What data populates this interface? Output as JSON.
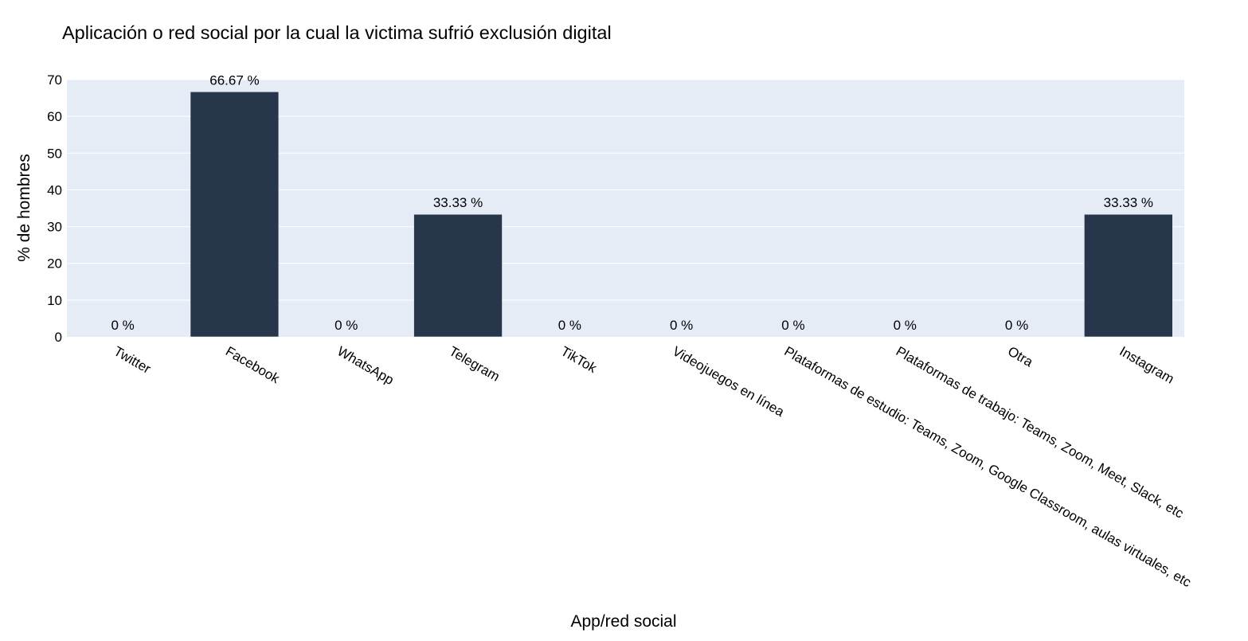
{
  "chart_data": {
    "type": "bar",
    "title": "Aplicación o red social por la cual la victima sufrió exclusión digital",
    "xlabel": "App/red social",
    "ylabel": "% de hombres",
    "categories": [
      "Twitter",
      "Facebook",
      "WhatsApp",
      "Telegram",
      "TikTok",
      "Videojuegos en línea",
      "Plataformas de estudio: Teams, Zoom, Google Classroom, aulas virtuales, etc",
      "Plataformas de trabajo: Teams, Zoom, Meet, Slack, etc",
      "Otra",
      "Instagram"
    ],
    "values": [
      0,
      66.67,
      0,
      33.33,
      0,
      0,
      0,
      0,
      0,
      33.33
    ],
    "data_labels": [
      "0 %",
      "66.67 %",
      "0 %",
      "33.33 %",
      "0 %",
      "0 %",
      "0 %",
      "0 %",
      "0 %",
      "33.33 %"
    ],
    "ylim": [
      0,
      70
    ],
    "yticks": [
      0,
      10,
      20,
      30,
      40,
      50,
      60,
      70
    ],
    "grid": true,
    "legend": "none",
    "colors": {
      "bar": "#27364b",
      "plot_background": "#e5ecf6",
      "gridline": "#ffffff"
    }
  }
}
